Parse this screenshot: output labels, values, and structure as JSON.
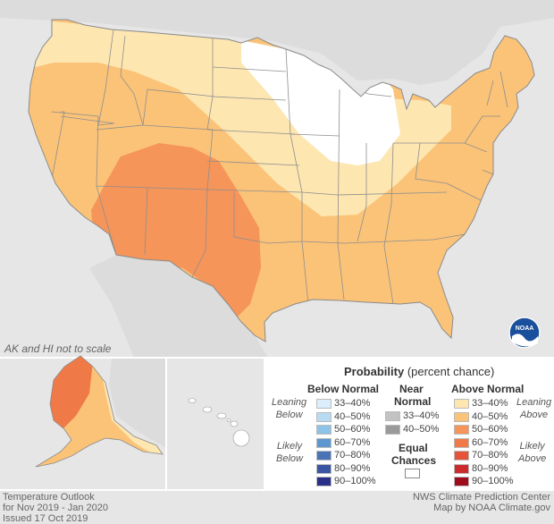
{
  "map": {
    "scale_note": "AK and HI not to scale",
    "colors": {
      "background": "#e6e6e6",
      "equal_chances": "#ffffff",
      "above_33_40": "#fde6b0",
      "above_40_50": "#fbc378",
      "above_50_60": "#f5955a",
      "alaska_60_70": "#ef7a48",
      "state_border": "#888888"
    },
    "icon": "noaa-logo-icon"
  },
  "legend": {
    "title_bold": "Probability",
    "title_rest": "(percent chance)",
    "below_normal": "Below Normal",
    "near_normal_1": "Near",
    "near_normal_2": "Normal",
    "above_normal": "Above Normal",
    "leaning_1": "Leaning",
    "below_word": "Below",
    "above_word": "Above",
    "likely": "Likely",
    "equal_1": "Equal",
    "equal_2": "Chances",
    "below_items": [
      {
        "label": "33–40%",
        "color": "#dcedfb"
      },
      {
        "label": "40–50%",
        "color": "#b8dbf2"
      },
      {
        "label": "50–60%",
        "color": "#8dc3e6"
      },
      {
        "label": "60–70%",
        "color": "#5e97d0"
      },
      {
        "label": "70–80%",
        "color": "#4a73b7"
      },
      {
        "label": "80–90%",
        "color": "#3a55a2"
      },
      {
        "label": "90–100%",
        "color": "#2a2f87"
      }
    ],
    "near_items": [
      {
        "label": "33–40%",
        "color": "#c2c2c2"
      },
      {
        "label": "40–50%",
        "color": "#9a9a9a"
      }
    ],
    "above_items": [
      {
        "label": "33–40%",
        "color": "#fde6b0"
      },
      {
        "label": "40–50%",
        "color": "#fbc378"
      },
      {
        "label": "50–60%",
        "color": "#f5955a"
      },
      {
        "label": "60–70%",
        "color": "#ef7a48"
      },
      {
        "label": "70–80%",
        "color": "#e4533a"
      },
      {
        "label": "80–90%",
        "color": "#cc2b2e"
      },
      {
        "label": "90–100%",
        "color": "#9e0d1e"
      }
    ]
  },
  "footer": {
    "line1": "Temperature Outlook",
    "line2": "for Nov 2019 - Jan 2020",
    "line3": "Issued 17 Oct 2019",
    "credit1": "NWS Climate Prediction Center",
    "credit2": "Map by NOAA Climate.gov"
  }
}
